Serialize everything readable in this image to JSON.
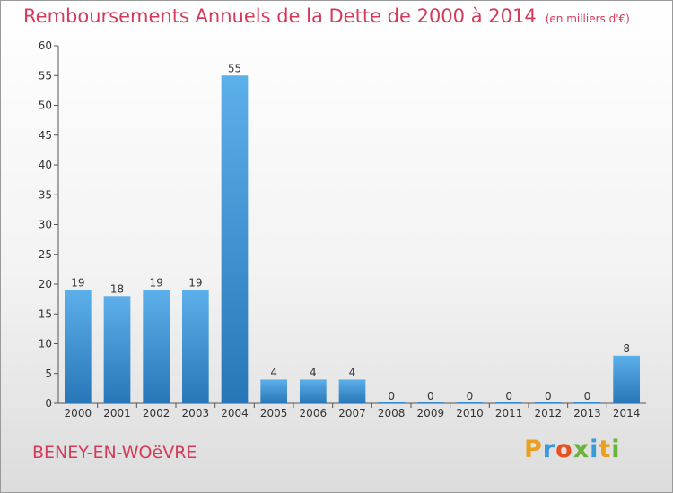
{
  "header": {
    "title": "Remboursements Annuels de la Dette de 2000 à 2014",
    "unit": "(en milliers d'€)"
  },
  "footer": {
    "place": "BENEY-EN-WOëVRE",
    "logo": {
      "text": "Proxiti",
      "colors": [
        "#e8a020",
        "#3a9ad9",
        "#e8501f",
        "#6bb33a",
        "#3a9ad9",
        "#e8a020",
        "#6bb33a"
      ]
    }
  },
  "chart_data": {
    "type": "bar",
    "categories": [
      "2000",
      "2001",
      "2002",
      "2003",
      "2004",
      "2005",
      "2006",
      "2007",
      "2008",
      "2009",
      "2010",
      "2011",
      "2012",
      "2013",
      "2014"
    ],
    "values": [
      19,
      18,
      19,
      19,
      55,
      4,
      4,
      4,
      0,
      0,
      0,
      0,
      0,
      0,
      8
    ],
    "title": "Remboursements Annuels de la Dette de 2000 à 2014",
    "ylim": [
      0,
      60
    ],
    "yticks": [
      0,
      5,
      10,
      15,
      20,
      25,
      30,
      35,
      40,
      45,
      50,
      55,
      60
    ],
    "grid": false,
    "bar_color": "#3a8fd4"
  }
}
